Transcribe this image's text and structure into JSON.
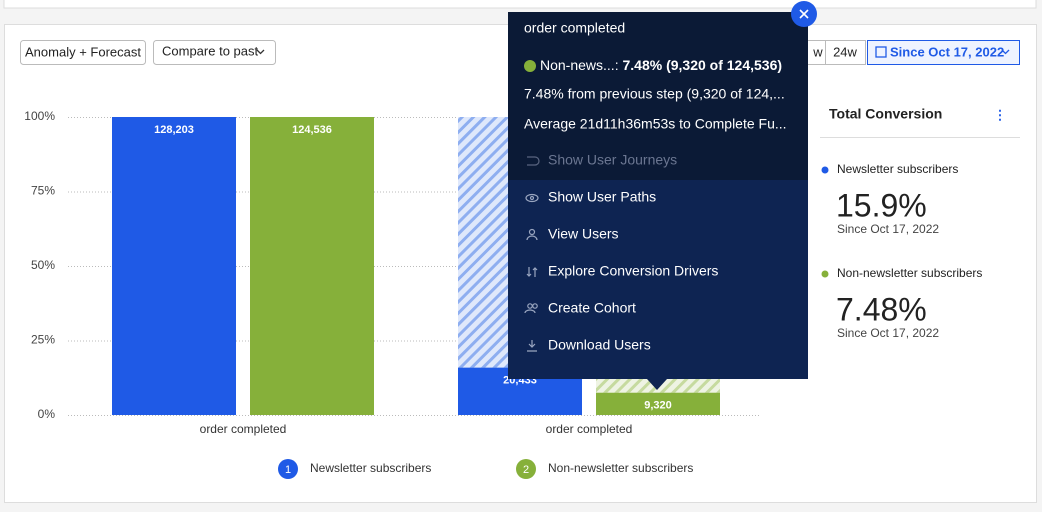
{
  "toolbar": {
    "buttons": [
      "Anomaly + Forecast",
      "Compare to past"
    ],
    "range_buttons": [
      "w",
      "24w"
    ],
    "date_button": "Since Oct 17, 2022"
  },
  "chart_data": {
    "type": "bar",
    "categories": [
      "order completed",
      "order completed"
    ],
    "series": [
      {
        "name": "Newsletter subscribers",
        "index_label": "1",
        "color": "#1f5ae6",
        "values": [
          100,
          15.9
        ],
        "value_labels": [
          "128,203",
          "20,433"
        ]
      },
      {
        "name": "Non-newsletter subscribers",
        "index_label": "2",
        "color": "#86b03a",
        "values": [
          100,
          7.48
        ],
        "value_labels": [
          "124,536",
          "9,320"
        ]
      }
    ],
    "ylim": [
      0,
      100
    ],
    "yticks": [
      {
        "value": 0,
        "label": "0%"
      },
      {
        "value": 25,
        "label": "25%"
      },
      {
        "value": 50,
        "label": "50%"
      },
      {
        "value": 75,
        "label": "75%"
      },
      {
        "value": 100,
        "label": "100%"
      }
    ],
    "grid": true
  },
  "tooltip": {
    "title": "order completed",
    "series_label": "Non-news...:",
    "series_value": "7.48% (9,320 of 124,536)",
    "lines": [
      "7.48% from previous step (9,320 of 124,...",
      "Average 21d11h36m53s to Complete Fu..."
    ],
    "menu": [
      "Show User Journeys",
      "Show User Paths",
      "View Users",
      "Explore Conversion Drivers",
      "Create Cohort",
      "Download Users"
    ]
  },
  "summary": {
    "title": "Total Conversion",
    "items": [
      {
        "name": "Newsletter subscribers",
        "value": "15.9%",
        "since": "Since Oct 17, 2022"
      },
      {
        "name": "Non-newsletter subscribers",
        "value": "7.48%",
        "since": "Since Oct 17, 2022"
      }
    ]
  }
}
